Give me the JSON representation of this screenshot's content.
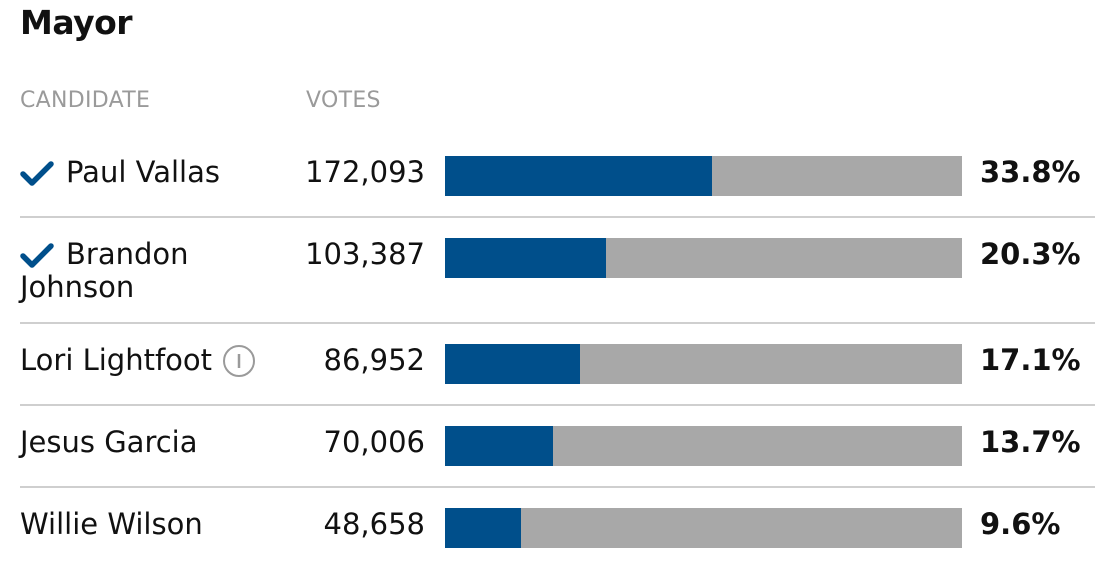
{
  "title": "Mayor",
  "headers": {
    "candidate": "CANDIDATE",
    "votes": "VOTES"
  },
  "colors": {
    "bar_fill": "#004f8b",
    "bar_track": "#a8a8a8",
    "check": "#004f8b"
  },
  "chart_data": {
    "type": "bar",
    "title": "Mayor",
    "categories": [
      "Paul Vallas",
      "Brandon Johnson",
      "Lori Lightfoot",
      "Jesus Garcia",
      "Willie Wilson"
    ],
    "series": [
      {
        "name": "VOTES",
        "values": [
          172093,
          103387,
          86952,
          70006,
          48658
        ]
      }
    ],
    "rows": [
      {
        "name": "Paul Vallas",
        "name_line1": "Paul Vallas",
        "name_line2": "",
        "votes": "172,093",
        "pct_value": 33.8,
        "pct": "33.8%",
        "advanced": true,
        "info": false
      },
      {
        "name": "Brandon Johnson",
        "name_line1": "Brandon",
        "name_line2": "Johnson",
        "votes": "103,387",
        "pct_value": 20.3,
        "pct": "20.3%",
        "advanced": true,
        "info": false
      },
      {
        "name": "Lori Lightfoot",
        "name_line1": "Lori Lightfoot",
        "name_line2": "",
        "votes": "86,952",
        "pct_value": 17.1,
        "pct": "17.1%",
        "advanced": false,
        "info": true
      },
      {
        "name": "Jesus Garcia",
        "name_line1": "Jesus Garcia",
        "name_line2": "",
        "votes": "70,006",
        "pct_value": 13.7,
        "pct": "13.7%",
        "advanced": false,
        "info": false
      },
      {
        "name": "Willie Wilson",
        "name_line1": "Willie Wilson",
        "name_line2": "",
        "votes": "48,658",
        "pct_value": 9.6,
        "pct": "9.6%",
        "advanced": false,
        "info": false
      }
    ],
    "xlim": [
      0,
      100
    ]
  }
}
